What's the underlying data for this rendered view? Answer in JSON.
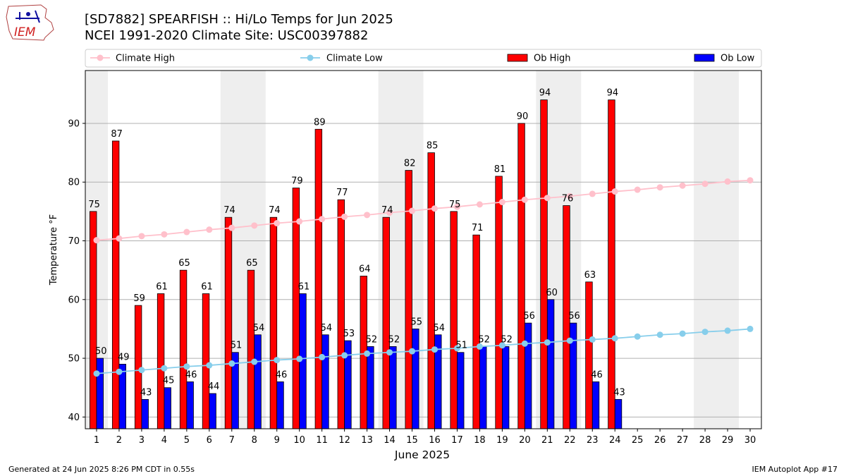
{
  "header": {
    "title_line1": "[SD7882] SPEARFISH :: Hi/Lo Temps for Jun 2025",
    "title_line2": "NCEI 1991-2020 Climate Site: USC00397882",
    "logo_text": "IEM"
  },
  "footer": {
    "left": "Generated at 24 Jun 2025 8:26 PM CDT in 0.55s",
    "right": "IEM Autoplot App #17"
  },
  "chart_data": {
    "type": "bar",
    "xlabel": "June 2025",
    "ylabel": "Temperature °F",
    "ylim": [
      38,
      99
    ],
    "yticks": [
      40,
      50,
      60,
      70,
      80,
      90
    ],
    "xlim": [
      0.5,
      30.5
    ],
    "days": [
      1,
      2,
      3,
      4,
      5,
      6,
      7,
      8,
      9,
      10,
      11,
      12,
      13,
      14,
      15,
      16,
      17,
      18,
      19,
      20,
      21,
      22,
      23,
      24,
      25,
      26,
      27,
      28,
      29,
      30
    ],
    "grid": "horizontal",
    "legend_placement": "top",
    "weekend_shading": [
      [
        0.5,
        1.5
      ],
      [
        6.5,
        8.5
      ],
      [
        13.5,
        15.5
      ],
      [
        20.5,
        22.5
      ],
      [
        27.5,
        29.5
      ]
    ],
    "series": [
      {
        "name": "Ob High",
        "kind": "bar",
        "color": "#ff0000",
        "values": [
          75,
          87,
          59,
          61,
          65,
          61,
          74,
          65,
          74,
          79,
          89,
          77,
          64,
          74,
          82,
          85,
          75,
          71,
          81,
          90,
          94,
          76,
          63,
          94
        ]
      },
      {
        "name": "Ob Low",
        "kind": "bar",
        "color": "#0000ff",
        "values": [
          50,
          49,
          43,
          45,
          46,
          44,
          51,
          54,
          46,
          61,
          54,
          53,
          52,
          52,
          55,
          54,
          51,
          52,
          52,
          56,
          60,
          56,
          46,
          43
        ]
      },
      {
        "name": "Climate High",
        "kind": "line",
        "color": "#ffc0cb",
        "values": [
          70.1,
          70.4,
          70.8,
          71.1,
          71.5,
          71.9,
          72.2,
          72.6,
          73.0,
          73.3,
          73.7,
          74.1,
          74.4,
          74.8,
          75.1,
          75.5,
          75.8,
          76.2,
          76.6,
          77.0,
          77.3,
          77.6,
          78.0,
          78.4,
          78.7,
          79.1,
          79.4,
          79.7,
          80.1,
          80.3
        ]
      },
      {
        "name": "Climate Low",
        "kind": "line",
        "color": "#87ceeb",
        "values": [
          47.4,
          47.7,
          48.0,
          48.3,
          48.6,
          48.8,
          49.1,
          49.4,
          49.7,
          49.9,
          50.2,
          50.5,
          50.8,
          51.0,
          51.2,
          51.5,
          51.7,
          52.0,
          52.2,
          52.5,
          52.7,
          53.0,
          53.2,
          53.4,
          53.7,
          54.0,
          54.2,
          54.5,
          54.7,
          55.0
        ]
      }
    ]
  }
}
